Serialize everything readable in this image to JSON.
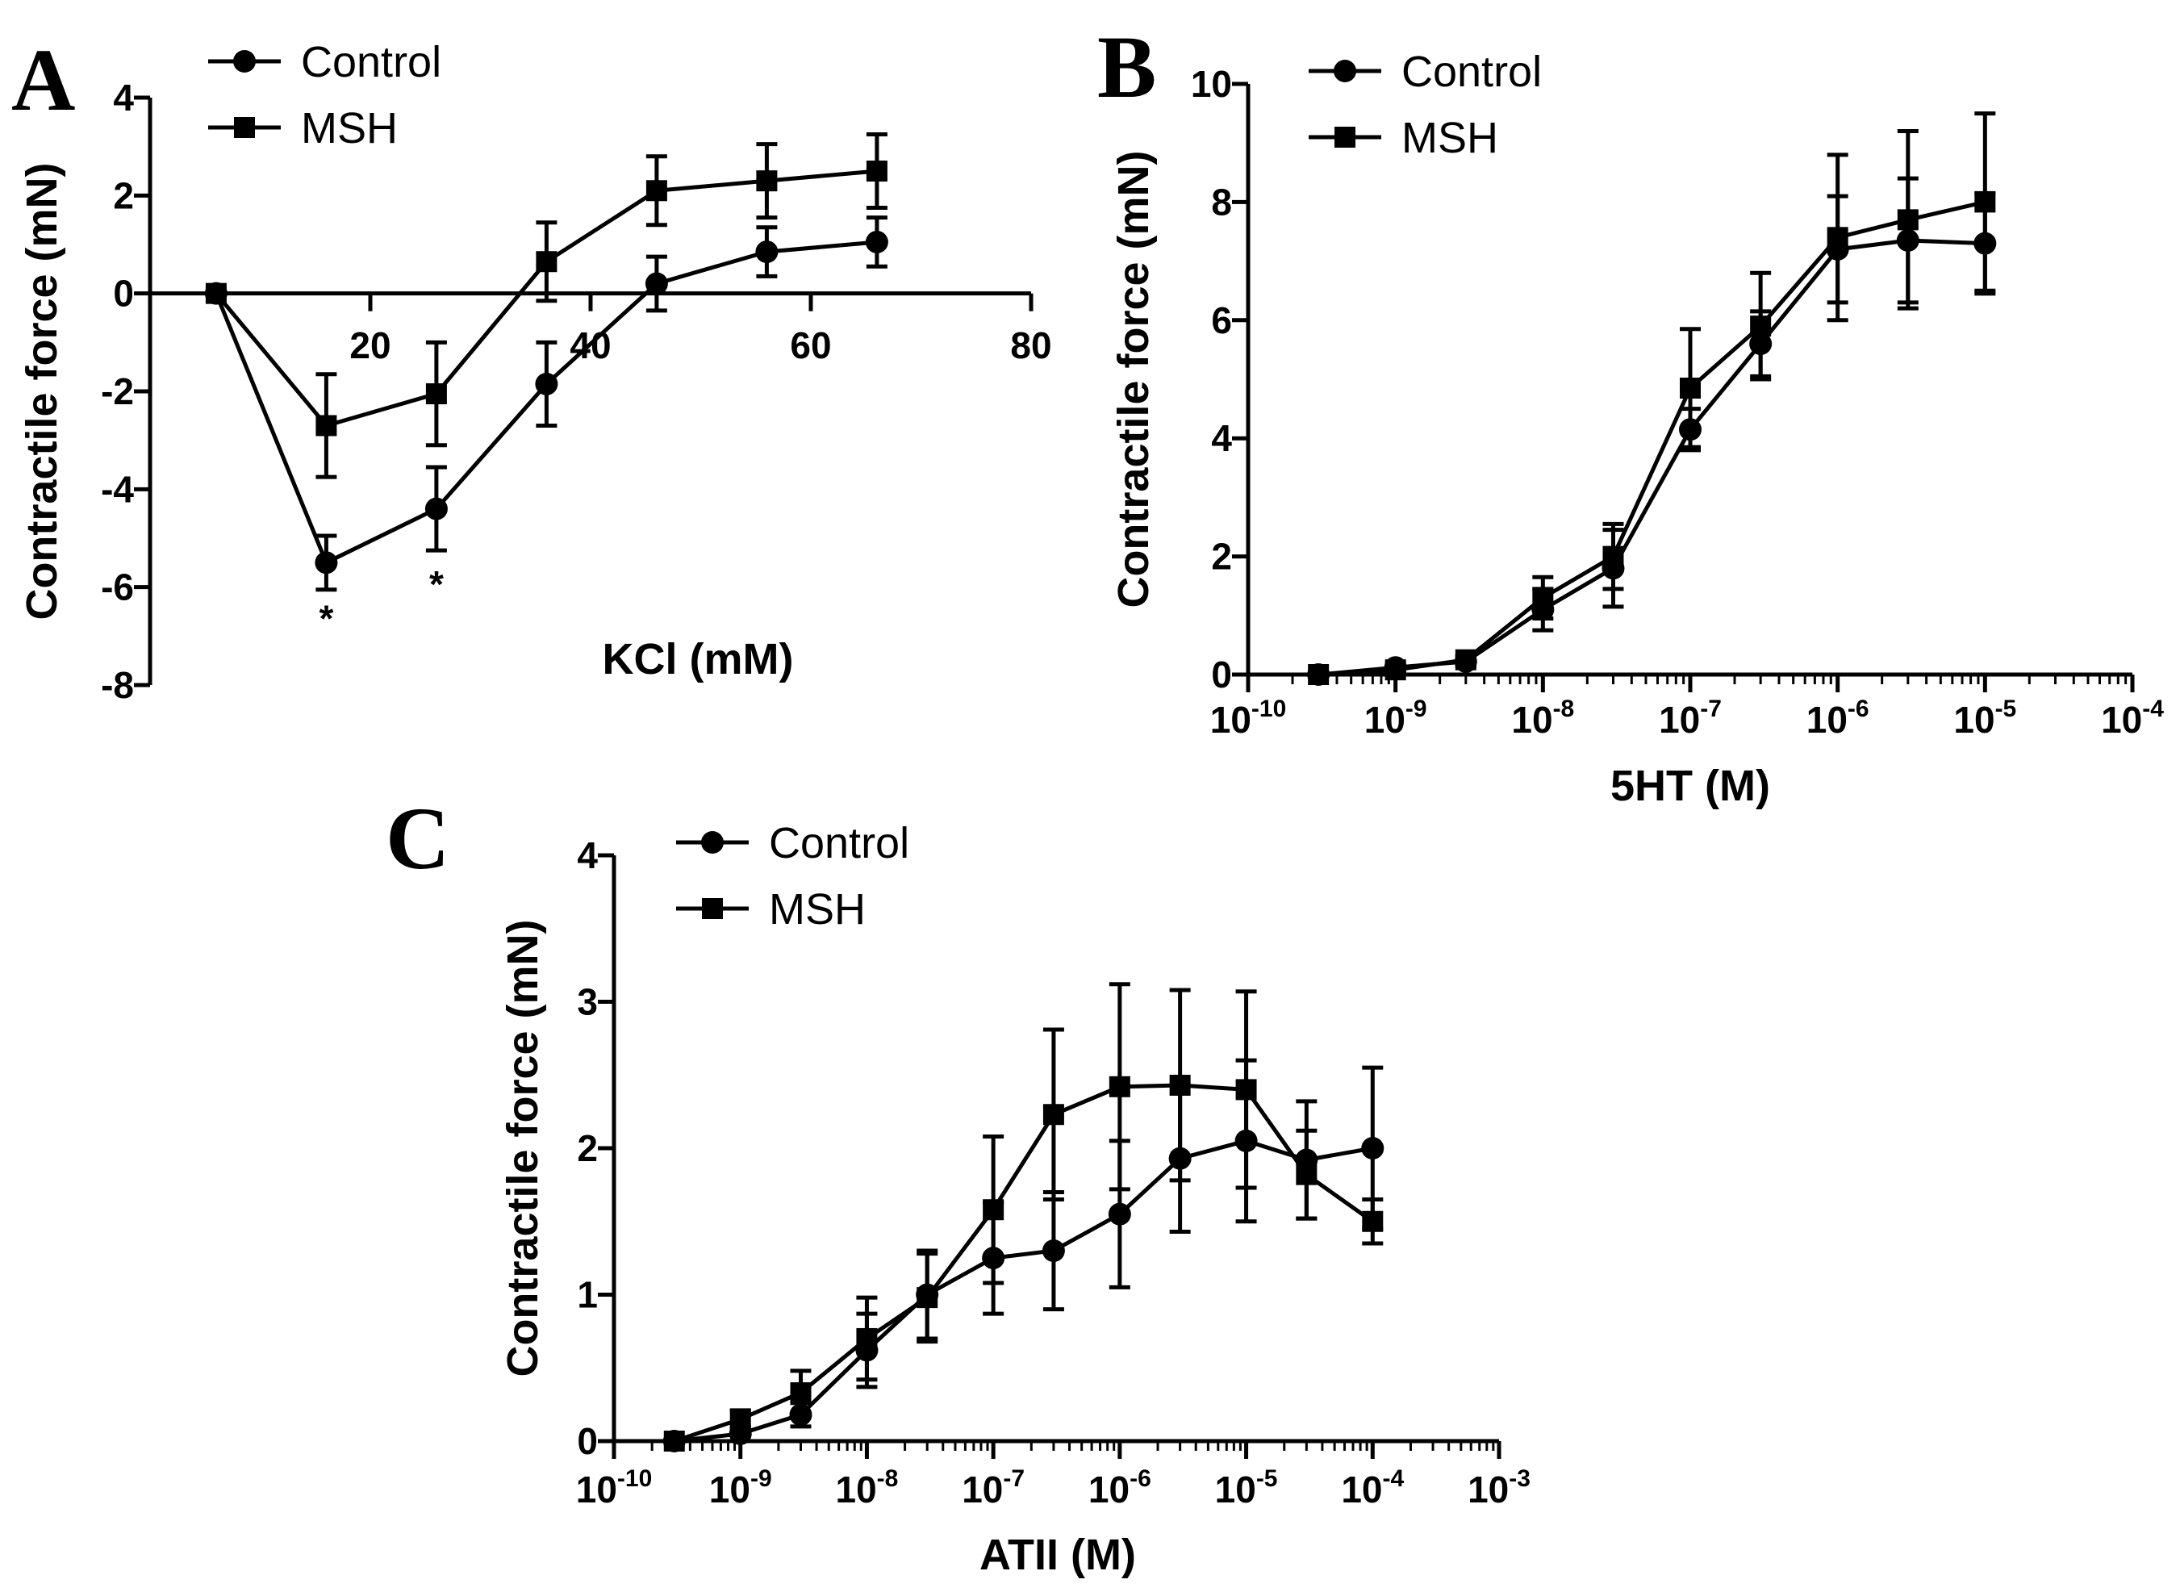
{
  "chart_data": [
    {
      "type": "line",
      "panel_label": "A",
      "title": "",
      "xlabel": "KCl (mM)",
      "ylabel": "Contractile force (mN)",
      "xscale": "linear",
      "xlim": [
        0,
        80
      ],
      "ylim": [
        -8,
        4
      ],
      "xticks": [
        20,
        40,
        60,
        80
      ],
      "yticks": [
        -8,
        -6,
        -4,
        -2,
        0,
        2,
        4
      ],
      "x_axis_at_zero": true,
      "grid": false,
      "legend_position": "top-left",
      "annotations": [
        {
          "text": "*",
          "x": 16,
          "y": -6.9
        },
        {
          "text": "*",
          "x": 26,
          "y": -6.2
        }
      ],
      "series": [
        {
          "name": "Control",
          "marker": "circle",
          "x": [
            6,
            16,
            26,
            36,
            46,
            56,
            66
          ],
          "y": [
            0,
            -5.5,
            -4.4,
            -1.85,
            0.2,
            0.85,
            1.05
          ],
          "err": [
            0,
            0.55,
            0.85,
            0.85,
            0.55,
            0.5,
            0.5
          ]
        },
        {
          "name": "MSH",
          "marker": "square",
          "x": [
            6,
            16,
            26,
            36,
            46,
            56,
            66
          ],
          "y": [
            0,
            -2.7,
            -2.05,
            0.65,
            2.1,
            2.3,
            2.5
          ],
          "err": [
            0,
            1.05,
            1.05,
            0.8,
            0.7,
            0.75,
            0.75
          ]
        }
      ]
    },
    {
      "type": "line",
      "panel_label": "B",
      "title": "",
      "xlabel": "5HT (M)",
      "ylabel": "Contractile force (mN)",
      "xscale": "log",
      "xlim": [
        1e-10,
        0.0001
      ],
      "ylim": [
        0,
        10
      ],
      "xticks": [
        "10^-10",
        "10^-9",
        "10^-8",
        "10^-7",
        "10^-6",
        "10^-5",
        "10^-4"
      ],
      "yticks": [
        0,
        2,
        4,
        6,
        8,
        10
      ],
      "grid": false,
      "legend_position": "top-left",
      "series": [
        {
          "name": "Control",
          "marker": "circle",
          "x": [
            3e-10,
            1e-09,
            3e-09,
            1e-08,
            3e-08,
            1e-07,
            3e-07,
            1e-06,
            3e-06,
            1e-05
          ],
          "y": [
            0,
            0.12,
            0.22,
            1.1,
            1.8,
            4.15,
            5.6,
            7.2,
            7.35,
            7.3
          ],
          "err": [
            0,
            0.05,
            0.08,
            0.35,
            0.65,
            0.35,
            0.55,
            0.9,
            1.05,
            0.85
          ]
        },
        {
          "name": "MSH",
          "marker": "square",
          "x": [
            3e-10,
            1e-09,
            3e-09,
            1e-08,
            3e-08,
            1e-07,
            3e-07,
            1e-06,
            3e-06,
            1e-05
          ],
          "y": [
            0,
            0.08,
            0.25,
            1.3,
            2.0,
            4.85,
            5.9,
            7.4,
            7.7,
            8.0
          ],
          "err": [
            0,
            0.05,
            0.08,
            0.35,
            0.55,
            1.0,
            0.9,
            1.4,
            1.5,
            1.5
          ]
        }
      ]
    },
    {
      "type": "line",
      "panel_label": "C",
      "title": "",
      "xlabel": "ATII (M)",
      "ylabel": "Contractile force (mN)",
      "xscale": "log",
      "xlim": [
        1e-10,
        0.001
      ],
      "ylim": [
        0,
        4
      ],
      "xticks": [
        "10^-10",
        "10^-9",
        "10^-8",
        "10^-7",
        "10^-6",
        "10^-5",
        "10^-4",
        "10^-3"
      ],
      "yticks": [
        0,
        1,
        2,
        3,
        4
      ],
      "grid": false,
      "legend_position": "top-left",
      "series": [
        {
          "name": "Control",
          "marker": "circle",
          "x": [
            3e-10,
            1e-09,
            3e-09,
            1e-08,
            3e-08,
            1e-07,
            3e-07,
            1e-06,
            3e-06,
            1e-05,
            3e-05,
            0.0001
          ],
          "y": [
            0,
            0.05,
            0.18,
            0.62,
            1.0,
            1.25,
            1.3,
            1.55,
            1.93,
            2.05,
            1.92,
            2.0
          ],
          "err": [
            0,
            0.05,
            0.08,
            0.25,
            0.3,
            0.38,
            0.4,
            0.5,
            0.5,
            0.55,
            0.4,
            0.55
          ]
        },
        {
          "name": "MSH",
          "marker": "square",
          "x": [
            3e-10,
            1e-09,
            3e-09,
            1e-08,
            3e-08,
            1e-07,
            3e-07,
            1e-06,
            3e-06,
            1e-05,
            3e-05,
            0.0001
          ],
          "y": [
            0,
            0.15,
            0.33,
            0.7,
            0.98,
            1.58,
            2.23,
            2.42,
            2.43,
            2.4,
            1.82,
            1.5
          ],
          "err": [
            0,
            0.06,
            0.15,
            0.28,
            0.3,
            0.5,
            0.58,
            0.7,
            0.65,
            0.67,
            0.3,
            0.15
          ]
        }
      ]
    }
  ]
}
